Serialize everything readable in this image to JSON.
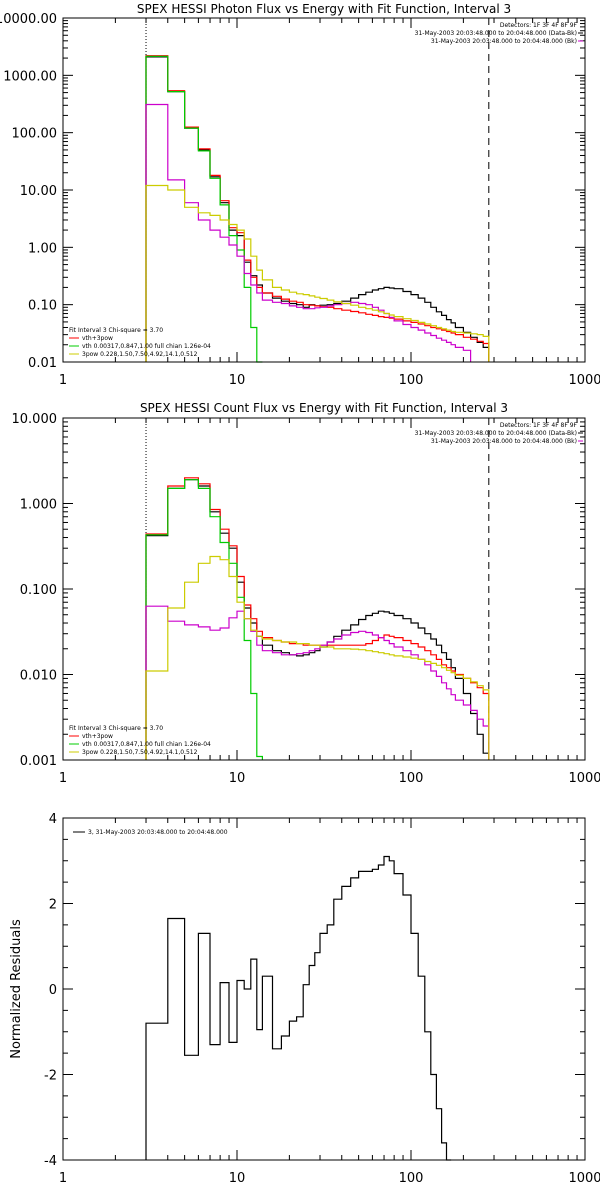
{
  "chart_data": [
    {
      "type": "line",
      "title": "SPEX HESSI Photon Flux vs Energy with Fit Function, Interval 3",
      "xscale": "log",
      "yscale": "log",
      "xlim": [
        1,
        1000
      ],
      "ylim": [
        0.01,
        10000
      ],
      "xticks": [
        1,
        10,
        100,
        1000
      ],
      "xtick_labels": [
        "1",
        "10",
        "100",
        "1000"
      ],
      "yticks": [
        0.01,
        0.1,
        1,
        10,
        100,
        1000,
        10000
      ],
      "ytick_labels": [
        "0.01",
        "0.10",
        "1.00",
        "10.00",
        "100.00",
        "1000.00",
        "10000.00"
      ],
      "vlines": [
        {
          "x": 3,
          "style": "dotted"
        },
        {
          "x": 280,
          "style": "dashed"
        }
      ],
      "header_lines": [
        "Detectors: 1F 3F 4F 8F 9F",
        "31-May-2003 20:03:48.000 to 20:04:48.000 (Data-Bk)",
        "31-May-2003 20:03:48.000 to 20:04:48.000 (Bk)"
      ],
      "fit_lines": [
        "Fit Interval 3   Chi-square = 3.70",
        "vth+3pow",
        "vth 0.00317,0.847,1.00  full chian 1.26e-04",
        "3pow 0.228,1.50,7.50,4.92,14.1,0.512"
      ],
      "edges": [
        3,
        4,
        5,
        6,
        7,
        8,
        9,
        10,
        11,
        12,
        13,
        14,
        16,
        18,
        20,
        22,
        24,
        26,
        28,
        30,
        33,
        36,
        40,
        45,
        50,
        55,
        60,
        65,
        70,
        75,
        80,
        90,
        100,
        110,
        120,
        130,
        140,
        150,
        160,
        170,
        180,
        200,
        220,
        240,
        260,
        280
      ],
      "series": [
        {
          "color": "#000000",
          "values": [
            2100,
            520,
            120,
            50,
            17,
            6,
            2,
            1.6,
            0.55,
            0.32,
            0.22,
            0.16,
            0.13,
            0.115,
            0.105,
            0.1,
            0.09,
            0.1,
            0.095,
            0.098,
            0.1,
            0.105,
            0.115,
            0.13,
            0.15,
            0.165,
            0.18,
            0.19,
            0.2,
            0.195,
            0.19,
            0.17,
            0.15,
            0.13,
            0.11,
            0.09,
            0.075,
            0.065,
            0.055,
            0.048,
            0.04,
            0.033,
            0.027,
            0.022,
            0.018
          ]
        },
        {
          "color": "#ff0000",
          "values": [
            2200,
            540,
            125,
            52,
            18,
            6.5,
            2.2,
            1.8,
            0.6,
            0.3,
            0.2,
            0.16,
            0.14,
            0.125,
            0.115,
            0.11,
            0.1,
            0.098,
            0.095,
            0.092,
            0.09,
            0.085,
            0.08,
            0.076,
            0.072,
            0.068,
            0.065,
            0.062,
            0.06,
            0.058,
            0.056,
            0.052,
            0.049,
            0.046,
            0.043,
            0.04,
            0.038,
            0.036,
            0.034,
            0.032,
            0.03,
            0.027,
            0.025,
            0.023,
            0.021
          ]
        },
        {
          "color": "#00cc00",
          "values": [
            2150,
            520,
            120,
            48,
            16,
            5.5,
            1.6,
            0.9,
            0.2,
            0.04,
            0.01
          ]
        },
        {
          "color": "#cc00cc",
          "values": [
            310,
            15,
            6,
            3,
            2,
            1.5,
            1.1,
            0.7,
            0.35,
            0.22,
            0.16,
            0.12,
            0.11,
            0.105,
            0.095,
            0.09,
            0.085,
            0.085,
            0.088,
            0.09,
            0.095,
            0.1,
            0.105,
            0.11,
            0.105,
            0.1,
            0.09,
            0.08,
            0.07,
            0.06,
            0.052,
            0.045,
            0.04,
            0.036,
            0.032,
            0.029,
            0.026,
            0.024,
            0.022,
            0.02,
            0.018,
            0.016
          ]
        },
        {
          "color": "#cccc00",
          "values": [
            12,
            10,
            5,
            4,
            3.6,
            3,
            2.5,
            2,
            1.4,
            0.7,
            0.4,
            0.27,
            0.2,
            0.18,
            0.165,
            0.155,
            0.15,
            0.142,
            0.135,
            0.128,
            0.12,
            0.112,
            0.105,
            0.098,
            0.09,
            0.085,
            0.08,
            0.075,
            0.07,
            0.066,
            0.062,
            0.057,
            0.053,
            0.049,
            0.046,
            0.043,
            0.04,
            0.038,
            0.036,
            0.034,
            0.033,
            0.032,
            0.031,
            0.03,
            0.028
          ]
        }
      ]
    },
    {
      "type": "line",
      "title": "SPEX HESSI Count Flux vs Energy with Fit Function, Interval 3",
      "xscale": "log",
      "yscale": "log",
      "xlim": [
        1,
        1000
      ],
      "ylim": [
        0.001,
        10
      ],
      "xticks": [
        1,
        10,
        100,
        1000
      ],
      "xtick_labels": [
        "1",
        "10",
        "100",
        "1000"
      ],
      "yticks": [
        0.001,
        0.01,
        0.1,
        1,
        10
      ],
      "ytick_labels": [
        "0.001",
        "0.010",
        "0.100",
        "1.000",
        "10.000"
      ],
      "vlines": [
        {
          "x": 3,
          "style": "dotted"
        },
        {
          "x": 280,
          "style": "dashed"
        }
      ],
      "header_lines": [
        "Detectors: 1F 3F 4F 8F 9F",
        "31-May-2003 20:03:48.000 to 20:04:48.000 (Data-Bk)",
        "31-May-2003 20:03:48.000 to 20:04:48.000 (Bk)"
      ],
      "fit_lines": [
        "Fit Interval 3   Chi-square = 3.70",
        "vth+3pow",
        "vth 0.00317,0.847,1.00  full chian 1.26e-04",
        "3pow 0.228,1.50,7.50,4.92,14.1,0.512"
      ],
      "edges": [
        3,
        4,
        5,
        6,
        7,
        8,
        9,
        10,
        11,
        12,
        13,
        14,
        16,
        18,
        20,
        22,
        24,
        26,
        28,
        30,
        33,
        36,
        40,
        45,
        50,
        55,
        60,
        65,
        70,
        75,
        80,
        90,
        100,
        110,
        120,
        130,
        140,
        150,
        160,
        170,
        180,
        200,
        220,
        240,
        260,
        280
      ],
      "series": [
        {
          "color": "#000000",
          "values": [
            0.42,
            1.5,
            1.9,
            1.6,
            0.8,
            0.45,
            0.3,
            0.12,
            0.06,
            0.04,
            0.028,
            0.022,
            0.019,
            0.018,
            0.017,
            0.0165,
            0.017,
            0.018,
            0.019,
            0.021,
            0.024,
            0.028,
            0.033,
            0.038,
            0.044,
            0.049,
            0.052,
            0.055,
            0.054,
            0.052,
            0.049,
            0.045,
            0.04,
            0.035,
            0.03,
            0.026,
            0.022,
            0.018,
            0.015,
            0.012,
            0.009,
            0.006,
            0.0035,
            0.002,
            0.0012
          ]
        },
        {
          "color": "#ff0000",
          "values": [
            0.44,
            1.6,
            2.0,
            1.7,
            0.85,
            0.5,
            0.32,
            0.14,
            0.065,
            0.045,
            0.032,
            0.027,
            0.025,
            0.024,
            0.023,
            0.023,
            0.022,
            0.022,
            0.022,
            0.022,
            0.022,
            0.022,
            0.022,
            0.022,
            0.022,
            0.023,
            0.025,
            0.027,
            0.029,
            0.028,
            0.027,
            0.025,
            0.023,
            0.021,
            0.019,
            0.017,
            0.015,
            0.013,
            0.012,
            0.011,
            0.01,
            0.009,
            0.008,
            0.007,
            0.006
          ]
        },
        {
          "color": "#00cc00",
          "values": [
            0.43,
            1.5,
            1.9,
            1.5,
            0.7,
            0.35,
            0.2,
            0.08,
            0.025,
            0.006,
            0.0011
          ]
        },
        {
          "color": "#cc00cc",
          "values": [
            0.063,
            0.042,
            0.038,
            0.036,
            0.033,
            0.035,
            0.046,
            0.055,
            0.045,
            0.032,
            0.022,
            0.019,
            0.018,
            0.017,
            0.017,
            0.0175,
            0.018,
            0.019,
            0.02,
            0.022,
            0.024,
            0.026,
            0.029,
            0.031,
            0.032,
            0.031,
            0.029,
            0.027,
            0.025,
            0.023,
            0.021,
            0.019,
            0.017,
            0.015,
            0.013,
            0.011,
            0.0095,
            0.008,
            0.0068,
            0.0058,
            0.005,
            0.0044,
            0.0038,
            0.003,
            0.0025
          ]
        },
        {
          "color": "#cccc00",
          "values": [
            0.011,
            0.06,
            0.12,
            0.2,
            0.24,
            0.22,
            0.14,
            0.07,
            0.045,
            0.033,
            0.028,
            0.026,
            0.025,
            0.024,
            0.024,
            0.023,
            0.023,
            0.022,
            0.022,
            0.021,
            0.021,
            0.02,
            0.02,
            0.0198,
            0.0195,
            0.019,
            0.0185,
            0.018,
            0.0175,
            0.017,
            0.0165,
            0.016,
            0.0155,
            0.015,
            0.0142,
            0.0135,
            0.0128,
            0.012,
            0.0112,
            0.0105,
            0.0098,
            0.009,
            0.0082,
            0.0074,
            0.0066
          ]
        }
      ]
    },
    {
      "type": "line",
      "title": "",
      "xscale": "log",
      "yscale": "linear",
      "xlim": [
        1,
        1000
      ],
      "ylim": [
        -4,
        4
      ],
      "xticks": [
        1,
        10,
        100,
        1000
      ],
      "xtick_labels": [
        "1",
        "10",
        "100",
        "1000"
      ],
      "yticks": [
        -4,
        -2,
        0,
        2,
        4
      ],
      "ytick_labels": [
        "-4",
        "-2",
        "0",
        "2",
        "4"
      ],
      "ylabel": "Normalized Residuals",
      "legend": "3, 31-May-2003 20:03:48.000 to 20:04:48.000",
      "edges": [
        3,
        4,
        5,
        6,
        7,
        8,
        9,
        10,
        11,
        12,
        13,
        14,
        16,
        18,
        20,
        22,
        24,
        26,
        28,
        30,
        33,
        36,
        40,
        45,
        50,
        55,
        60,
        65,
        70,
        75,
        80,
        90,
        100,
        110,
        120,
        130,
        140,
        150,
        160,
        170,
        180,
        200,
        220,
        240,
        260,
        280
      ],
      "series": [
        {
          "color": "#000000",
          "values": [
            -0.8,
            1.65,
            -1.55,
            1.3,
            -1.3,
            0.15,
            -1.25,
            0.2,
            0.0,
            0.7,
            -0.95,
            0.3,
            -1.4,
            -1.1,
            -0.75,
            -0.65,
            0.1,
            0.55,
            0.85,
            1.3,
            1.5,
            2.1,
            2.4,
            2.6,
            2.75,
            2.75,
            2.8,
            2.9,
            3.1,
            3.0,
            2.7,
            2.2,
            1.3,
            0.3,
            -1.0,
            -2.0,
            -2.8,
            -3.6,
            -4.0
          ]
        }
      ]
    }
  ]
}
